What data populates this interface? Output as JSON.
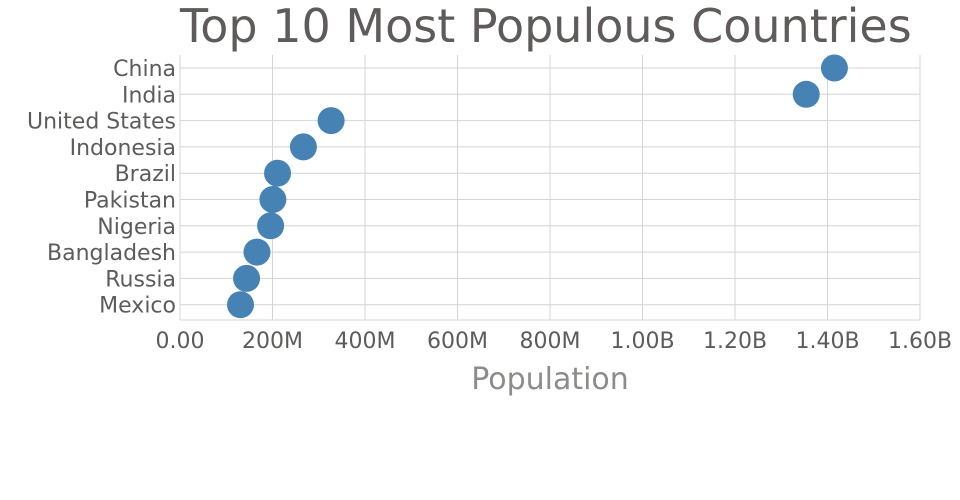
{
  "chart_data": {
    "type": "scatter",
    "title": "Top 10 Most Populous Countries",
    "xlabel": "Population",
    "ylabel": "",
    "categories": [
      "China",
      "India",
      "United States",
      "Indonesia",
      "Brazil",
      "Pakistan",
      "Nigeria",
      "Bangladesh",
      "Russia",
      "Mexico"
    ],
    "values": [
      1415000000,
      1354000000,
      326700000,
      266800000,
      210900000,
      200800000,
      195900000,
      166400000,
      143900000,
      130800000
    ],
    "xlim": [
      0,
      1600000000
    ],
    "xticks": [
      0,
      200000000,
      400000000,
      600000000,
      800000000,
      1000000000,
      1200000000,
      1400000000,
      1600000000
    ],
    "xtick_labels": [
      "0.00",
      "200M",
      "400M",
      "600M",
      "800M",
      "1.00B",
      "1.20B",
      "1.40B",
      "1.60B"
    ],
    "grid": true,
    "marker_color": "#4682b4"
  }
}
